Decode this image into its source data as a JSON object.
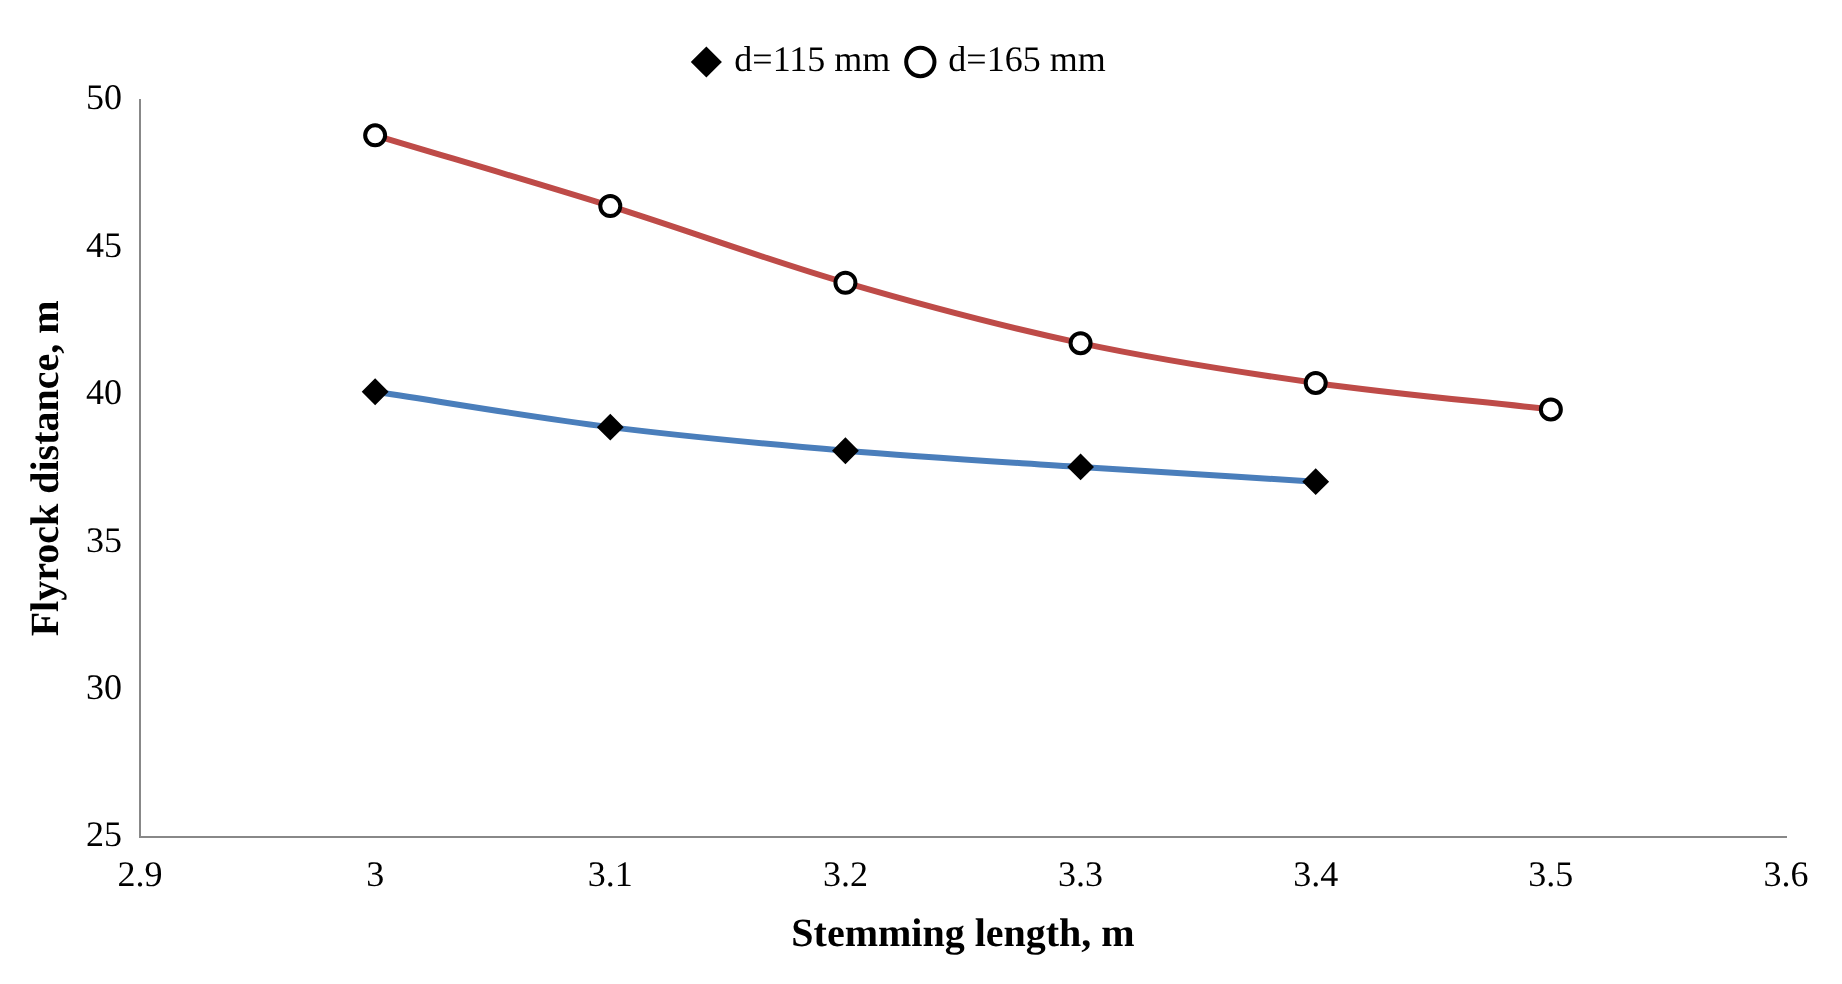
{
  "chart_data": {
    "type": "line",
    "xlabel": "Stemming length, m",
    "ylabel": "Flyrock distance, m",
    "xlim": [
      2.9,
      3.6
    ],
    "xticks": [
      2.9,
      3,
      3.1,
      3.2,
      3.3,
      3.4,
      3.5,
      3.6
    ],
    "ylim": [
      25,
      50
    ],
    "yticks": [
      25,
      30,
      35,
      40,
      45,
      50
    ],
    "grid": false,
    "legend": "top",
    "line_style": "solid",
    "series": [
      {
        "name": "d=115 mm",
        "color": "#4a7ebb",
        "marker": "diamond",
        "x": [
          3,
          3.1,
          3.2,
          3.3,
          3.4
        ],
        "values": [
          40.1,
          38.9,
          38.1,
          37.55,
          37.05
        ]
      },
      {
        "name": "d=165 mm",
        "color": "#be4b48",
        "marker": "circle",
        "x": [
          3,
          3.1,
          3.2,
          3.3,
          3.4,
          3.5
        ],
        "values": [
          48.8,
          46.4,
          43.8,
          41.75,
          40.4,
          39.5
        ]
      }
    ]
  }
}
